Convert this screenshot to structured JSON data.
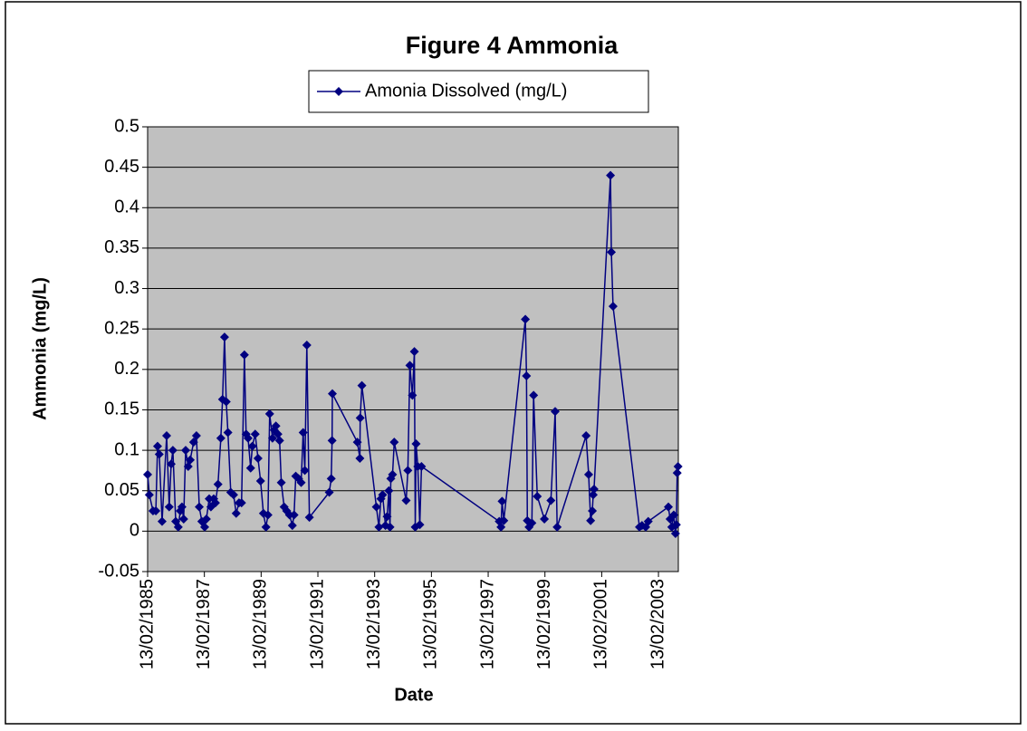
{
  "chart_data": {
    "type": "line",
    "title": "Figure 4 Ammonia",
    "xlabel": "Date",
    "ylabel": "Ammonia (mg/L)",
    "legend": "top",
    "grid": true,
    "plot_background": "#c0c0c0",
    "x": [
      1985.12,
      1985.18,
      1985.31,
      1985.41,
      1985.47,
      1985.53,
      1985.63,
      1985.79,
      1985.88,
      1985.95,
      1986.01,
      1986.11,
      1986.2,
      1986.27,
      1986.33,
      1986.39,
      1986.46,
      1986.55,
      1986.62,
      1986.74,
      1986.84,
      1986.94,
      1987.03,
      1987.13,
      1987.19,
      1987.29,
      1987.35,
      1987.45,
      1987.51,
      1987.6,
      1987.7,
      1987.76,
      1987.83,
      1987.89,
      1987.95,
      1988.05,
      1988.15,
      1988.24,
      1988.34,
      1988.43,
      1988.53,
      1988.59,
      1988.66,
      1988.75,
      1988.81,
      1988.91,
      1989.01,
      1989.1,
      1989.2,
      1989.29,
      1989.36,
      1989.42,
      1989.52,
      1989.58,
      1989.64,
      1989.71,
      1989.77,
      1989.83,
      1989.93,
      1990.02,
      1990.12,
      1990.22,
      1990.28,
      1990.34,
      1990.44,
      1990.53,
      1990.6,
      1990.66,
      1990.73,
      1990.82,
      1991.52,
      1991.59,
      1991.62,
      1991.63,
      1992.51,
      1992.6,
      1992.61,
      1992.67,
      1993.18,
      1993.27,
      1993.34,
      1993.4,
      1993.5,
      1993.56,
      1993.62,
      1993.66,
      1993.69,
      1993.75,
      1993.81,
      1994.23,
      1994.29,
      1994.36,
      1994.45,
      1994.52,
      1994.55,
      1994.58,
      1994.64,
      1994.71,
      1994.77,
      1997.51,
      1997.57,
      1997.61,
      1997.67,
      1998.43,
      1998.47,
      1998.5,
      1998.56,
      1998.66,
      1998.72,
      1998.85,
      1999.1,
      1999.33,
      1999.48,
      1999.55,
      2000.57,
      2000.66,
      2000.73,
      2000.79,
      2000.82,
      2000.85,
      2001.43,
      2001.46,
      2001.52,
      2002.45,
      2002.54,
      2002.67,
      2002.76,
      2003.47,
      2003.53,
      2003.59,
      2003.66,
      2003.72,
      2003.75,
      2003.78,
      2003.81
    ],
    "series": [
      {
        "name": "Amonia Dissolved (mg/L)",
        "color": "#000080",
        "values": [
          0.07,
          0.045,
          0.025,
          0.025,
          0.105,
          0.095,
          0.012,
          0.118,
          0.03,
          0.083,
          0.1,
          0.012,
          0.005,
          0.025,
          0.03,
          0.015,
          0.1,
          0.08,
          0.088,
          0.11,
          0.118,
          0.03,
          0.012,
          0.005,
          0.015,
          0.04,
          0.03,
          0.04,
          0.035,
          0.058,
          0.115,
          0.163,
          0.24,
          0.16,
          0.122,
          0.048,
          0.045,
          0.022,
          0.035,
          0.035,
          0.218,
          0.12,
          0.115,
          0.078,
          0.105,
          0.12,
          0.09,
          0.062,
          0.022,
          0.005,
          0.02,
          0.145,
          0.115,
          0.125,
          0.13,
          0.12,
          0.112,
          0.06,
          0.03,
          0.025,
          0.02,
          0.007,
          0.02,
          0.068,
          0.065,
          0.06,
          0.122,
          0.075,
          0.23,
          0.017,
          0.048,
          0.065,
          0.112,
          0.17,
          0.11,
          0.09,
          0.14,
          0.18,
          0.03,
          0.005,
          0.04,
          0.045,
          0.007,
          0.018,
          0.05,
          0.005,
          0.065,
          0.07,
          0.11,
          0.038,
          0.075,
          0.205,
          0.168,
          0.222,
          0.005,
          0.108,
          0.08,
          0.008,
          0.08,
          0.012,
          0.005,
          0.037,
          0.013,
          0.262,
          0.192,
          0.013,
          0.005,
          0.01,
          0.168,
          0.043,
          0.015,
          0.038,
          0.148,
          0.005,
          0.118,
          0.07,
          0.013,
          0.025,
          0.045,
          0.052,
          0.44,
          0.345,
          0.278,
          0.005,
          0.007,
          0.005,
          0.012,
          0.03,
          0.015,
          0.005,
          0.02,
          -0.003,
          0.008,
          0.072,
          0.08
        ]
      }
    ],
    "xlim": [
      1985.12,
      2003.82
    ],
    "xticks": [
      {
        "value": 1985.12,
        "label": "13/02/1985"
      },
      {
        "value": 1987.12,
        "label": "13/02/1987"
      },
      {
        "value": 1989.12,
        "label": "13/02/1989"
      },
      {
        "value": 1991.12,
        "label": "13/02/1991"
      },
      {
        "value": 1993.12,
        "label": "13/02/1993"
      },
      {
        "value": 1995.12,
        "label": "13/02/1995"
      },
      {
        "value": 1997.12,
        "label": "13/02/1997"
      },
      {
        "value": 1999.12,
        "label": "13/02/1999"
      },
      {
        "value": 2001.12,
        "label": "13/02/2001"
      },
      {
        "value": 2003.12,
        "label": "13/02/2003"
      }
    ],
    "ylim": [
      -0.05,
      0.5
    ],
    "yticks": [
      -0.05,
      0,
      0.05,
      0.1,
      0.15,
      0.2,
      0.25,
      0.3,
      0.35,
      0.4,
      0.45,
      0.5
    ]
  }
}
